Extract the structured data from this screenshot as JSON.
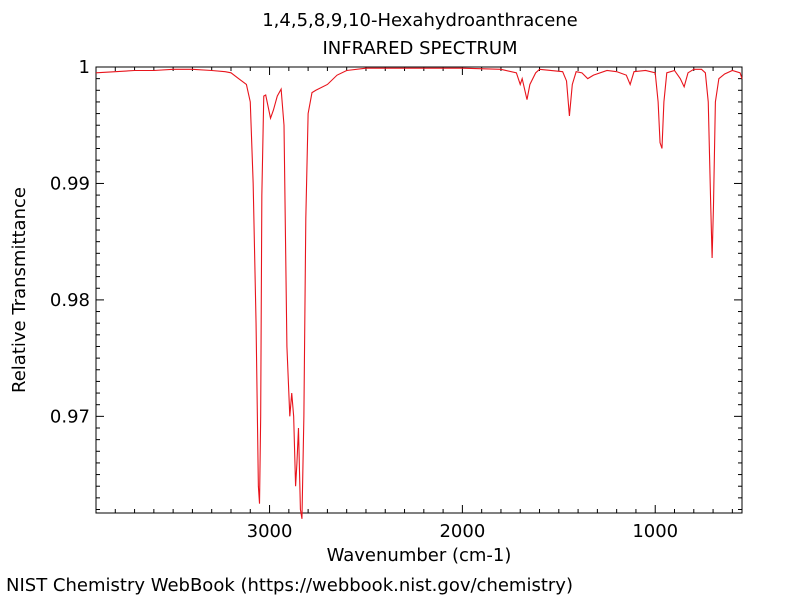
{
  "chart_data": {
    "type": "line",
    "title": "1,4,5,8,9,10-Hexahydroanthracene",
    "subtitle": "INFRARED SPECTRUM",
    "xlabel": "Wavenumber (cm-1)",
    "ylabel": "Relative Transmittance",
    "xlim": [
      3900,
      550
    ],
    "ylim": [
      0.9617,
      1.0
    ],
    "x_ticks": [
      3000,
      2000,
      1000
    ],
    "x_tick_labels": [
      "3000",
      "2000",
      "1000"
    ],
    "y_ticks": [
      0.97,
      0.98,
      0.99,
      1.0
    ],
    "y_tick_labels": [
      "0.97",
      "0.98",
      "0.99",
      "1"
    ],
    "grid": false,
    "line_color": "#e8141c",
    "series": [
      {
        "name": "IR spectrum",
        "points": [
          [
            3900,
            0.9995
          ],
          [
            3800,
            0.9996
          ],
          [
            3700,
            0.9997
          ],
          [
            3600,
            0.9997
          ],
          [
            3500,
            0.9998
          ],
          [
            3400,
            0.9998
          ],
          [
            3300,
            0.9997
          ],
          [
            3230,
            0.9996
          ],
          [
            3200,
            0.9995
          ],
          [
            3160,
            0.999
          ],
          [
            3120,
            0.9985
          ],
          [
            3100,
            0.997
          ],
          [
            3085,
            0.99
          ],
          [
            3070,
            0.978
          ],
          [
            3058,
            0.964
          ],
          [
            3052,
            0.9625
          ],
          [
            3046,
            0.97
          ],
          [
            3040,
            0.989
          ],
          [
            3030,
            0.9975
          ],
          [
            3020,
            0.9976
          ],
          [
            3010,
            0.9968
          ],
          [
            2995,
            0.9956
          ],
          [
            2980,
            0.9963
          ],
          [
            2960,
            0.9975
          ],
          [
            2940,
            0.9981
          ],
          [
            2925,
            0.995
          ],
          [
            2910,
            0.976
          ],
          [
            2895,
            0.97
          ],
          [
            2885,
            0.972
          ],
          [
            2875,
            0.97
          ],
          [
            2865,
            0.964
          ],
          [
            2858,
            0.966
          ],
          [
            2850,
            0.969
          ],
          [
            2840,
            0.962
          ],
          [
            2832,
            0.9612
          ],
          [
            2822,
            0.97
          ],
          [
            2812,
            0.987
          ],
          [
            2800,
            0.996
          ],
          [
            2780,
            0.9978
          ],
          [
            2760,
            0.998
          ],
          [
            2700,
            0.9985
          ],
          [
            2650,
            0.9993
          ],
          [
            2600,
            0.9997
          ],
          [
            2500,
            0.9999
          ],
          [
            2000,
            0.9999
          ],
          [
            1800,
            0.9998
          ],
          [
            1720,
            0.9995
          ],
          [
            1700,
            0.9985
          ],
          [
            1690,
            0.999
          ],
          [
            1665,
            0.9972
          ],
          [
            1650,
            0.9985
          ],
          [
            1620,
            0.9995
          ],
          [
            1600,
            0.9998
          ],
          [
            1480,
            0.9996
          ],
          [
            1460,
            0.9988
          ],
          [
            1445,
            0.9958
          ],
          [
            1430,
            0.9985
          ],
          [
            1410,
            0.9996
          ],
          [
            1380,
            0.9995
          ],
          [
            1350,
            0.999
          ],
          [
            1320,
            0.9993
          ],
          [
            1250,
            0.9997
          ],
          [
            1200,
            0.9996
          ],
          [
            1150,
            0.9993
          ],
          [
            1130,
            0.9985
          ],
          [
            1110,
            0.9996
          ],
          [
            1050,
            0.9997
          ],
          [
            1000,
            0.9995
          ],
          [
            985,
            0.997
          ],
          [
            975,
            0.9935
          ],
          [
            965,
            0.993
          ],
          [
            955,
            0.997
          ],
          [
            940,
            0.9995
          ],
          [
            900,
            0.9997
          ],
          [
            870,
            0.999
          ],
          [
            850,
            0.9983
          ],
          [
            830,
            0.9995
          ],
          [
            800,
            0.9998
          ],
          [
            760,
            0.9998
          ],
          [
            740,
            0.9995
          ],
          [
            725,
            0.997
          ],
          [
            712,
            0.988
          ],
          [
            705,
            0.9836
          ],
          [
            698,
            0.988
          ],
          [
            688,
            0.997
          ],
          [
            670,
            0.999
          ],
          [
            640,
            0.9994
          ],
          [
            600,
            0.9997
          ],
          [
            560,
            0.9995
          ],
          [
            550,
            0.999
          ]
        ]
      }
    ],
    "source_credit": "NIST Chemistry WebBook (https://webbook.nist.gov/chemistry)"
  }
}
